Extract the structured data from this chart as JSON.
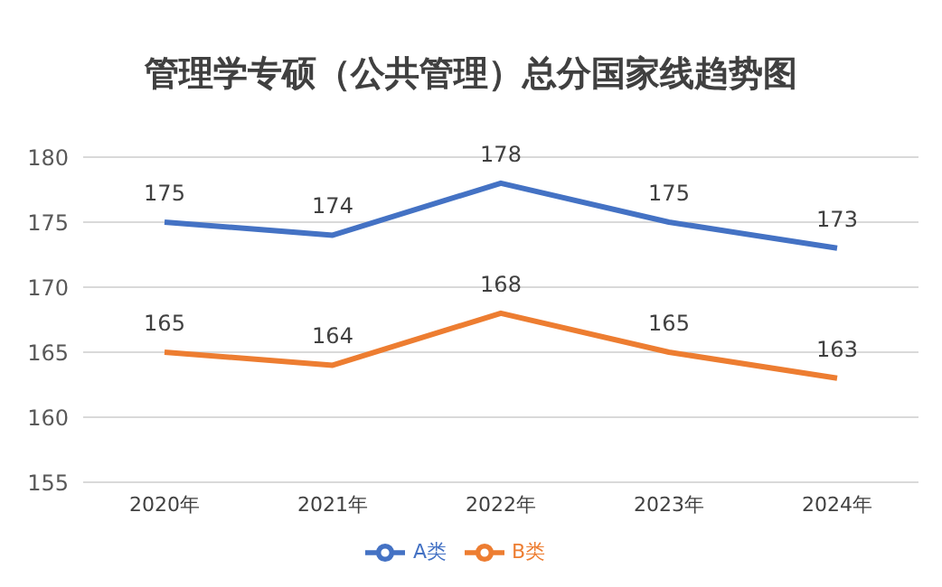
{
  "chart_data": {
    "type": "line",
    "title": "管理学专硕（公共管理）总分国家线趋势图",
    "categories": [
      "2020年",
      "2021年",
      "2022年",
      "2023年",
      "2024年"
    ],
    "series": [
      {
        "name": "A类",
        "color": "#4472c4",
        "values": [
          175,
          174,
          178,
          175,
          173
        ]
      },
      {
        "name": "B类",
        "color": "#ed7d31",
        "values": [
          165,
          164,
          168,
          165,
          163
        ]
      }
    ],
    "ylim": [
      155,
      180
    ],
    "yticks": [
      155,
      160,
      165,
      170,
      175,
      180
    ],
    "grid": "y",
    "legend": "bottom",
    "data_labels": true,
    "marker": "none",
    "line_style": "solid"
  }
}
